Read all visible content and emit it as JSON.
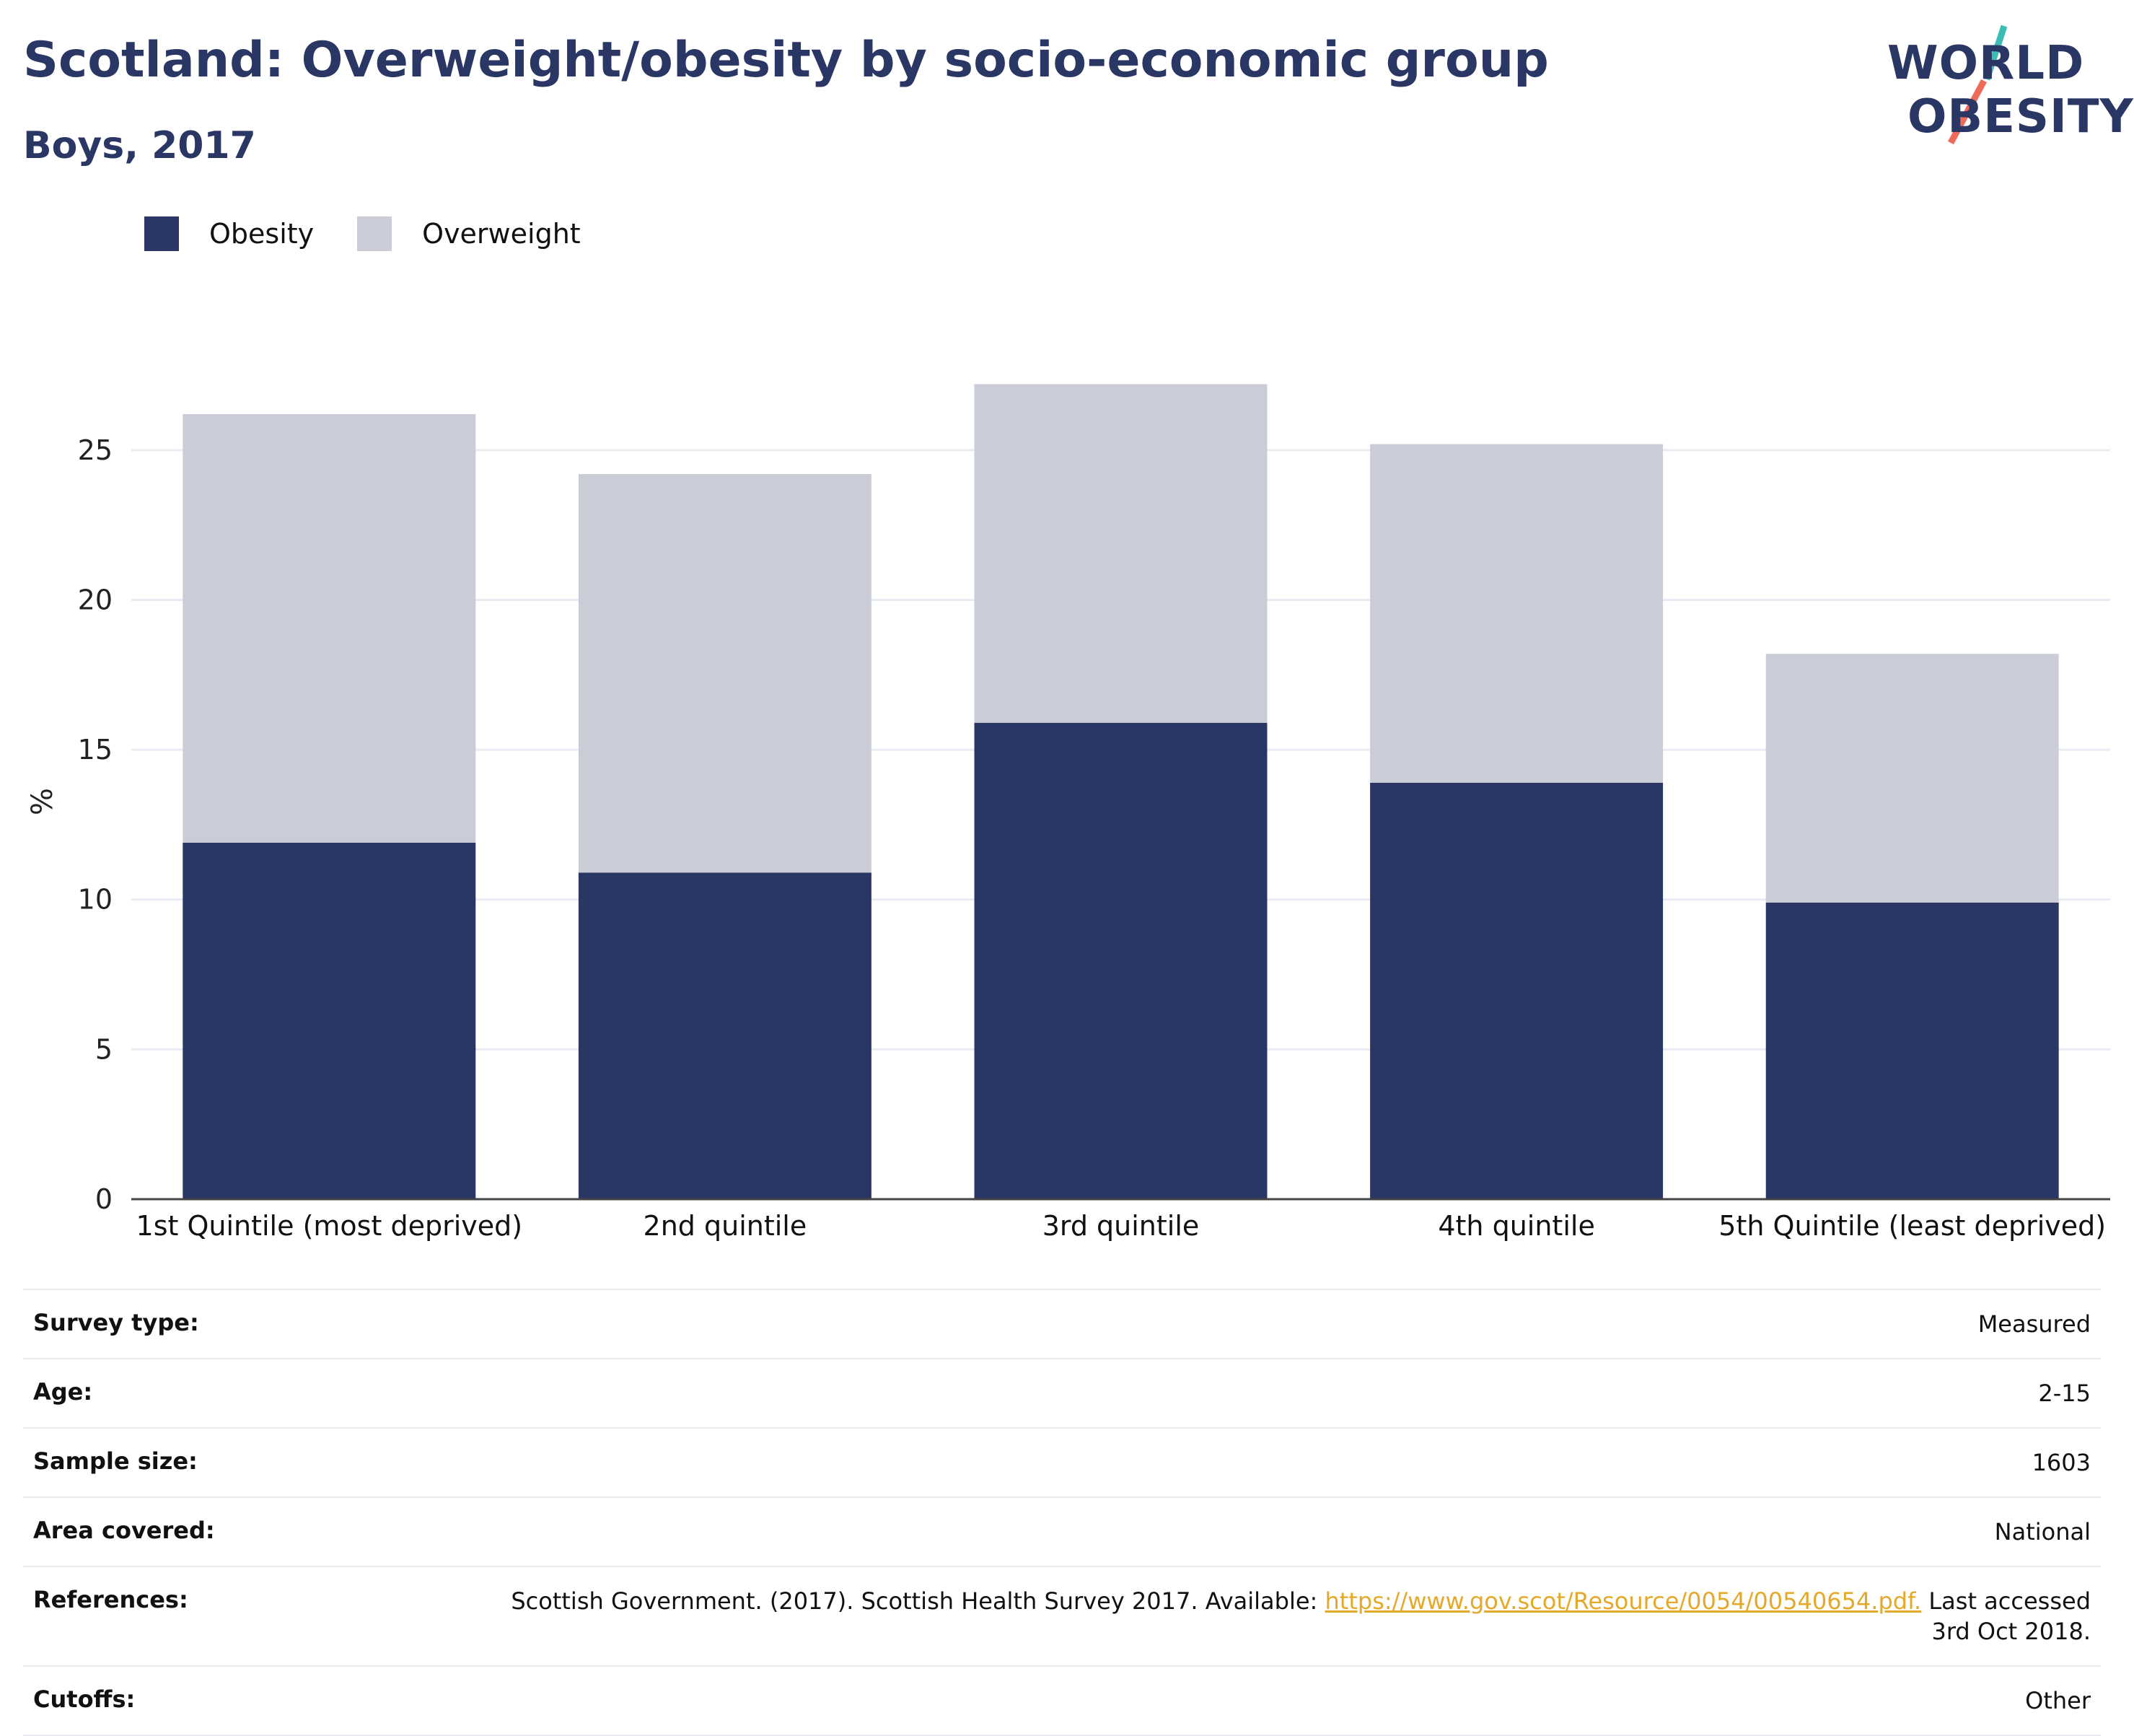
{
  "header": {
    "title": "Scotland: Overweight/obesity by socio-economic group",
    "subtitle": "Boys, 2017"
  },
  "logo": {
    "line1": "WORLD",
    "line2": "OBESITY",
    "accent_teal": "#3bbcb5",
    "accent_coral": "#ee6a5b"
  },
  "colors": {
    "obesity": "#2a3663",
    "overweight": "#caccd7",
    "grid": "#e9ebf2",
    "axis": "#444444"
  },
  "legend": [
    {
      "label": "Obesity",
      "color": "#2a3663"
    },
    {
      "label": "Overweight",
      "color": "#caccd7"
    }
  ],
  "chart_data": {
    "type": "bar",
    "stacked": true,
    "categories": [
      "1st Quintile (most deprived)",
      "2nd quintile",
      "3rd quintile",
      "4th quintile",
      "5th Quintile (least deprived)"
    ],
    "series": [
      {
        "name": "Obesity",
        "values": [
          11.9,
          10.9,
          15.9,
          13.9,
          9.9
        ]
      },
      {
        "name": "Overweight",
        "values": [
          14.3,
          13.3,
          11.3,
          11.3,
          8.3
        ]
      }
    ],
    "xlabel": "",
    "ylabel": "%",
    "ylim": [
      0,
      27.5
    ],
    "yticks": [
      0,
      5,
      10,
      15,
      20,
      25
    ],
    "grid": true,
    "legend_position": "top-left"
  },
  "info": [
    {
      "label": "Survey type:",
      "value": "Measured"
    },
    {
      "label": "Age:",
      "value": "2-15"
    },
    {
      "label": "Sample size:",
      "value": "1603"
    },
    {
      "label": "Area covered:",
      "value": "National"
    },
    {
      "label": "References:",
      "value_before": "Scottish Government. (2017). Scottish Health Survey 2017. Available: ",
      "link": "https://www.gov.scot/Resource/0054/00540654.pdf.",
      "value_after": " Last accessed 3rd Oct 2018."
    },
    {
      "label": "Cutoffs:",
      "value": "Other"
    }
  ]
}
